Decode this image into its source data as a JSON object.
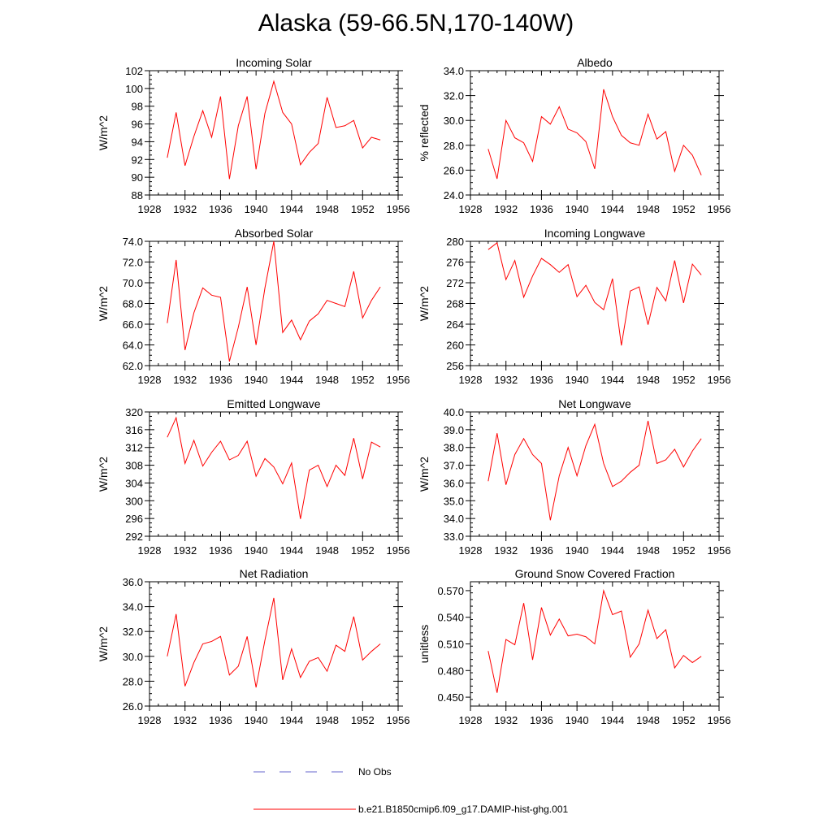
{
  "figure": {
    "title": "Alaska (59-66.5N,170-140W)"
  },
  "colors": {
    "model_line": "#ff0000",
    "obs_line": "#6666cc",
    "axis": "#000000"
  },
  "legend": {
    "entries": [
      {
        "label": "No Obs",
        "style": "dashed",
        "color": "#6666cc"
      },
      {
        "label": "b.e21.B1850cmip6.f09_g17.DAMIP-hist-ghg.001",
        "style": "solid",
        "color": "#ff0000"
      }
    ]
  },
  "chart_data": [
    {
      "type": "line",
      "title": "Incoming Solar",
      "xlabel": "",
      "ylabel": "W/m^2",
      "xlim": [
        1928,
        1956
      ],
      "ylim": [
        88,
        102
      ],
      "xticks": [
        1928,
        1932,
        1936,
        1940,
        1944,
        1948,
        1952,
        1956
      ],
      "xtick_labels": [
        "1928",
        "1932",
        "1936",
        "1940",
        "1944",
        "1948",
        "1952",
        "1956"
      ],
      "yticks": [
        88,
        90,
        92,
        94,
        96,
        98,
        100,
        102
      ],
      "ytick_labels": [
        "88",
        "90",
        "92",
        "94",
        "96",
        "98",
        "100",
        "102"
      ],
      "x": [
        1930,
        1931,
        1932,
        1933,
        1934,
        1935,
        1936,
        1937,
        1938,
        1939,
        1940,
        1941,
        1942,
        1943,
        1944,
        1945,
        1946,
        1947,
        1948,
        1949,
        1950,
        1951,
        1952,
        1953,
        1954
      ],
      "series": [
        {
          "name": "b.e21.B1850cmip6.f09_g17.DAMIP-hist-ghg.001",
          "values": [
            92.2,
            97.3,
            91.3,
            94.6,
            97.5,
            94.5,
            99.1,
            89.8,
            95.8,
            99.1,
            90.9,
            97.2,
            100.8,
            97.3,
            96.0,
            91.4,
            92.8,
            93.8,
            99.0,
            95.6,
            95.8,
            96.4,
            93.3,
            94.5,
            94.2
          ]
        }
      ]
    },
    {
      "type": "line",
      "title": "Albedo",
      "xlabel": "",
      "ylabel": "% reflected",
      "xlim": [
        1928,
        1956
      ],
      "ylim": [
        24,
        34
      ],
      "xticks": [
        1928,
        1932,
        1936,
        1940,
        1944,
        1948,
        1952,
        1956
      ],
      "xtick_labels": [
        "1928",
        "1932",
        "1936",
        "1940",
        "1944",
        "1948",
        "1952",
        "1956"
      ],
      "yticks": [
        24,
        26,
        28,
        30,
        32,
        34
      ],
      "ytick_labels": [
        "24.0",
        "26.0",
        "28.0",
        "30.0",
        "32.0",
        "34.0"
      ],
      "x": [
        1930,
        1931,
        1932,
        1933,
        1934,
        1935,
        1936,
        1937,
        1938,
        1939,
        1940,
        1941,
        1942,
        1943,
        1944,
        1945,
        1946,
        1947,
        1948,
        1949,
        1950,
        1951,
        1952,
        1953,
        1954
      ],
      "series": [
        {
          "name": "b.e21.B1850cmip6.f09_g17.DAMIP-hist-ghg.001",
          "values": [
            27.7,
            25.3,
            30.0,
            28.6,
            28.2,
            26.7,
            30.3,
            29.7,
            31.1,
            29.3,
            29.0,
            28.3,
            26.1,
            32.5,
            30.3,
            28.8,
            28.2,
            28.0,
            30.5,
            28.5,
            29.1,
            25.9,
            28.0,
            27.2,
            25.6
          ]
        }
      ]
    },
    {
      "type": "line",
      "title": "Absorbed Solar",
      "xlabel": "",
      "ylabel": "W/m^2",
      "xlim": [
        1928,
        1956
      ],
      "ylim": [
        62,
        74
      ],
      "xticks": [
        1928,
        1932,
        1936,
        1940,
        1944,
        1948,
        1952,
        1956
      ],
      "xtick_labels": [
        "1928",
        "1932",
        "1936",
        "1940",
        "1944",
        "1948",
        "1952",
        "1956"
      ],
      "yticks": [
        62,
        64,
        66,
        68,
        70,
        72,
        74
      ],
      "ytick_labels": [
        "62.0",
        "64.0",
        "66.0",
        "68.0",
        "70.0",
        "72.0",
        "74.0"
      ],
      "x": [
        1930,
        1931,
        1932,
        1933,
        1934,
        1935,
        1936,
        1937,
        1938,
        1939,
        1940,
        1941,
        1942,
        1943,
        1944,
        1945,
        1946,
        1947,
        1948,
        1949,
        1950,
        1951,
        1952,
        1953,
        1954
      ],
      "series": [
        {
          "name": "b.e21.B1850cmip6.f09_g17.DAMIP-hist-ghg.001",
          "values": [
            66.1,
            72.2,
            63.5,
            67.1,
            69.5,
            68.8,
            68.6,
            62.4,
            65.7,
            69.6,
            64.0,
            69.5,
            74.0,
            65.2,
            66.4,
            64.5,
            66.3,
            67.0,
            68.3,
            68.0,
            67.7,
            71.1,
            66.6,
            68.3,
            69.6
          ]
        }
      ]
    },
    {
      "type": "line",
      "title": "Incoming Longwave",
      "xlabel": "",
      "ylabel": "W/m^2",
      "xlim": [
        1928,
        1956
      ],
      "ylim": [
        256,
        280
      ],
      "xticks": [
        1928,
        1932,
        1936,
        1940,
        1944,
        1948,
        1952,
        1956
      ],
      "xtick_labels": [
        "1928",
        "1932",
        "1936",
        "1940",
        "1944",
        "1948",
        "1952",
        "1956"
      ],
      "yticks": [
        256,
        260,
        264,
        268,
        272,
        276,
        280
      ],
      "ytick_labels": [
        "256",
        "260",
        "264",
        "268",
        "272",
        "276",
        "280"
      ],
      "x": [
        1930,
        1931,
        1932,
        1933,
        1934,
        1935,
        1936,
        1937,
        1938,
        1939,
        1940,
        1941,
        1942,
        1943,
        1944,
        1945,
        1946,
        1947,
        1948,
        1949,
        1950,
        1951,
        1952,
        1953,
        1954
      ],
      "series": [
        {
          "name": "b.e21.B1850cmip6.f09_g17.DAMIP-hist-ghg.001",
          "values": [
            278.4,
            279.7,
            272.6,
            276.3,
            269.2,
            273.3,
            276.7,
            275.5,
            274.0,
            275.5,
            269.3,
            271.5,
            268.2,
            266.8,
            272.8,
            259.9,
            270.4,
            271.2,
            263.9,
            271.1,
            268.5,
            276.3,
            268.1,
            275.6,
            273.5
          ]
        }
      ]
    },
    {
      "type": "line",
      "title": "Emitted Longwave",
      "xlabel": "",
      "ylabel": "W/m^2",
      "xlim": [
        1928,
        1956
      ],
      "ylim": [
        292,
        320
      ],
      "xticks": [
        1928,
        1932,
        1936,
        1940,
        1944,
        1948,
        1952,
        1956
      ],
      "xtick_labels": [
        "1928",
        "1932",
        "1936",
        "1940",
        "1944",
        "1948",
        "1952",
        "1956"
      ],
      "yticks": [
        292,
        296,
        300,
        304,
        308,
        312,
        316,
        320
      ],
      "ytick_labels": [
        "292",
        "296",
        "300",
        "304",
        "308",
        "312",
        "316",
        "320"
      ],
      "x": [
        1930,
        1931,
        1932,
        1933,
        1934,
        1935,
        1936,
        1937,
        1938,
        1939,
        1940,
        1941,
        1942,
        1943,
        1944,
        1945,
        1946,
        1947,
        1948,
        1949,
        1950,
        1951,
        1952,
        1953,
        1954
      ],
      "series": [
        {
          "name": "b.e21.B1850cmip6.f09_g17.DAMIP-hist-ghg.001",
          "values": [
            314.3,
            318.7,
            308.4,
            313.6,
            307.8,
            310.9,
            313.4,
            309.2,
            310.2,
            313.4,
            305.5,
            309.5,
            307.6,
            303.8,
            308.5,
            295.9,
            306.9,
            308.0,
            303.2,
            308.0,
            305.7,
            314.1,
            304.9,
            313.2,
            312.1
          ]
        }
      ]
    },
    {
      "type": "line",
      "title": "Net Longwave",
      "xlabel": "",
      "ylabel": "W/m^2",
      "xlim": [
        1928,
        1956
      ],
      "ylim": [
        33,
        40
      ],
      "xticks": [
        1928,
        1932,
        1936,
        1940,
        1944,
        1948,
        1952,
        1956
      ],
      "xtick_labels": [
        "1928",
        "1932",
        "1936",
        "1940",
        "1944",
        "1948",
        "1952",
        "1956"
      ],
      "yticks": [
        33,
        34,
        35,
        36,
        37,
        38,
        39,
        40
      ],
      "ytick_labels": [
        "33.0",
        "34.0",
        "35.0",
        "36.0",
        "37.0",
        "38.0",
        "39.0",
        "40.0"
      ],
      "x": [
        1930,
        1931,
        1932,
        1933,
        1934,
        1935,
        1936,
        1937,
        1938,
        1939,
        1940,
        1941,
        1942,
        1943,
        1944,
        1945,
        1946,
        1947,
        1948,
        1949,
        1950,
        1951,
        1952,
        1953,
        1954
      ],
      "series": [
        {
          "name": "b.e21.B1850cmip6.f09_g17.DAMIP-hist-ghg.001",
          "values": [
            36.1,
            38.8,
            35.9,
            37.6,
            38.5,
            37.6,
            37.1,
            33.9,
            36.4,
            38.0,
            36.4,
            38.1,
            39.3,
            37.1,
            35.8,
            36.1,
            36.6,
            37.0,
            39.5,
            37.1,
            37.3,
            37.9,
            36.9,
            37.8,
            38.5
          ]
        }
      ]
    },
    {
      "type": "line",
      "title": "Net Radiation",
      "xlabel": "",
      "ylabel": "W/m^2",
      "xlim": [
        1928,
        1956
      ],
      "ylim": [
        26,
        36
      ],
      "xticks": [
        1928,
        1932,
        1936,
        1940,
        1944,
        1948,
        1952,
        1956
      ],
      "xtick_labels": [
        "1928",
        "1932",
        "1936",
        "1940",
        "1944",
        "1948",
        "1952",
        "1956"
      ],
      "yticks": [
        26,
        28,
        30,
        32,
        34,
        36
      ],
      "ytick_labels": [
        "26.0",
        "28.0",
        "30.0",
        "32.0",
        "34.0",
        "36.0"
      ],
      "x": [
        1930,
        1931,
        1932,
        1933,
        1934,
        1935,
        1936,
        1937,
        1938,
        1939,
        1940,
        1941,
        1942,
        1943,
        1944,
        1945,
        1946,
        1947,
        1948,
        1949,
        1950,
        1951,
        1952,
        1953,
        1954
      ],
      "series": [
        {
          "name": "b.e21.B1850cmip6.f09_g17.DAMIP-hist-ghg.001",
          "values": [
            30.0,
            33.4,
            27.6,
            29.5,
            31.0,
            31.2,
            31.6,
            28.5,
            29.2,
            31.6,
            27.5,
            31.3,
            34.7,
            28.1,
            30.6,
            28.3,
            29.6,
            29.9,
            28.8,
            30.9,
            30.4,
            33.2,
            29.7,
            30.4,
            31.0
          ]
        }
      ]
    },
    {
      "type": "line",
      "title": "Ground Snow Covered Fraction",
      "xlabel": "",
      "ylabel": "unitless",
      "xlim": [
        1928,
        1956
      ],
      "ylim": [
        0.44,
        0.58
      ],
      "xticks": [
        1928,
        1932,
        1936,
        1940,
        1944,
        1948,
        1952,
        1956
      ],
      "xtick_labels": [
        "1928",
        "1932",
        "1936",
        "1940",
        "1944",
        "1948",
        "1952",
        "1956"
      ],
      "yticks": [
        0.45,
        0.48,
        0.51,
        0.54,
        0.57
      ],
      "ytick_labels": [
        "0.450",
        "0.480",
        "0.510",
        "0.540",
        "0.570"
      ],
      "x": [
        1930,
        1931,
        1932,
        1933,
        1934,
        1935,
        1936,
        1937,
        1938,
        1939,
        1940,
        1941,
        1942,
        1943,
        1944,
        1945,
        1946,
        1947,
        1948,
        1949,
        1950,
        1951,
        1952,
        1953,
        1954
      ],
      "series": [
        {
          "name": "b.e21.B1850cmip6.f09_g17.DAMIP-hist-ghg.001",
          "values": [
            0.502,
            0.455,
            0.515,
            0.509,
            0.556,
            0.492,
            0.551,
            0.52,
            0.538,
            0.519,
            0.521,
            0.518,
            0.51,
            0.57,
            0.543,
            0.547,
            0.495,
            0.51,
            0.548,
            0.516,
            0.526,
            0.483,
            0.497,
            0.489,
            0.496
          ]
        }
      ]
    }
  ]
}
